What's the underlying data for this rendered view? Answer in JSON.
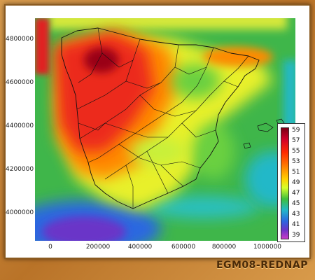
{
  "caption": "EGM08-REDNAP",
  "colors": {
    "frame": "#c9893a",
    "sea_green": "#3fb64a",
    "high_red": "#e02020",
    "low_purple": "#6a34c8"
  },
  "axes": {
    "y_ticks": [
      "4800000",
      "4600000",
      "4400000",
      "4200000",
      "4000000"
    ],
    "x_ticks": [
      "0",
      "200000",
      "400000",
      "600000",
      "800000",
      "1000000"
    ]
  },
  "legend": {
    "labels": [
      "59",
      "57",
      "55",
      "53",
      "51",
      "49",
      "47",
      "45",
      "43",
      "41",
      "39"
    ]
  },
  "chart_data": {
    "type": "heatmap",
    "title": "",
    "xlabel": "",
    "ylabel": "",
    "xlim": [
      -100000,
      1150000
    ],
    "ylim": [
      3880000,
      4900000
    ],
    "colorbar_range": [
      39,
      59
    ],
    "x_ticks": [
      0,
      200000,
      400000,
      600000,
      800000,
      1000000
    ],
    "y_ticks": [
      4000000,
      4200000,
      4400000,
      4600000,
      4800000
    ],
    "colorbar_ticks": [
      59,
      57,
      55,
      53,
      51,
      49,
      47,
      45,
      43,
      41,
      39
    ]
  }
}
